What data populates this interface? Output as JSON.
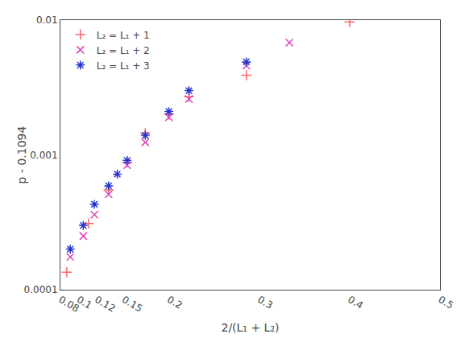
{
  "chart_data": {
    "type": "scatter",
    "xlabel": "2/(L₁ + L₂)",
    "ylabel": "p - 0.1094",
    "xlim": [
      0.08,
      0.5
    ],
    "ylim": [
      0.0001,
      0.01
    ],
    "xticks": [
      0.08,
      0.1,
      0.12,
      0.15,
      0.2,
      0.3,
      0.4,
      0.5
    ],
    "yticks": [
      0.0001,
      0.001,
      0.01
    ],
    "log": "y",
    "grid": false,
    "legend": "upper left",
    "series": [
      {
        "name": "L₂ = L₁ + 1",
        "color": "#ff6666",
        "marker": "plus",
        "x": [
          0.087,
          0.1111,
          0.1333,
          0.1538,
          0.1739,
          0.2,
          0.2222,
          0.2857,
          0.4
        ],
        "values": [
          0.000135,
          0.00031,
          0.00055,
          0.00088,
          0.00145,
          0.002,
          0.0027,
          0.0039,
          0.0097
        ]
      },
      {
        "name": "L₂ = L₁ + 2",
        "color": "#dd44bb",
        "marker": "x",
        "x": [
          0.0909,
          0.1053,
          0.1176,
          0.1333,
          0.1538,
          0.1739,
          0.2,
          0.2222,
          0.2857,
          0.3333
        ],
        "values": [
          0.000175,
          0.00025,
          0.00036,
          0.00051,
          0.00084,
          0.00124,
          0.0019,
          0.0026,
          0.0046,
          0.0068
        ]
      },
      {
        "name": "L₂ = L₁ + 3",
        "color": "#2233cc",
        "marker": "star",
        "x": [
          0.0909,
          0.1053,
          0.1176,
          0.1333,
          0.1429,
          0.1538,
          0.1739,
          0.2,
          0.2222,
          0.2857
        ],
        "values": [
          0.0002,
          0.0003,
          0.00043,
          0.00059,
          0.00072,
          0.00091,
          0.0014,
          0.0021,
          0.003,
          0.0049
        ]
      }
    ]
  }
}
